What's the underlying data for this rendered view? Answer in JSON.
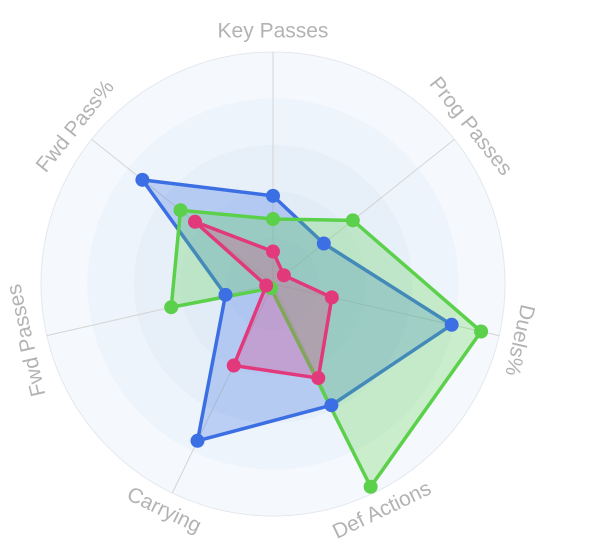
{
  "chart_data": {
    "type": "radar",
    "categories": [
      "Key Passes",
      "Prog Passes",
      "Duels%",
      "Def Actions",
      "Carrying",
      "Fwd Passes",
      "Fwd Pass%"
    ],
    "rlim": [
      0,
      100
    ],
    "rticks": [
      20,
      40,
      60,
      80,
      100
    ],
    "grid": true,
    "series": [
      {
        "color": "#3b6fe3",
        "values": [
          38,
          28,
          79,
          58,
          75,
          21,
          72
        ]
      },
      {
        "color": "#5bd04a",
        "values": [
          28,
          44,
          92,
          97,
          2,
          45,
          51
        ]
      },
      {
        "color": "#e2397c",
        "values": [
          14,
          6,
          26,
          45,
          39,
          3,
          43
        ]
      }
    ]
  }
}
